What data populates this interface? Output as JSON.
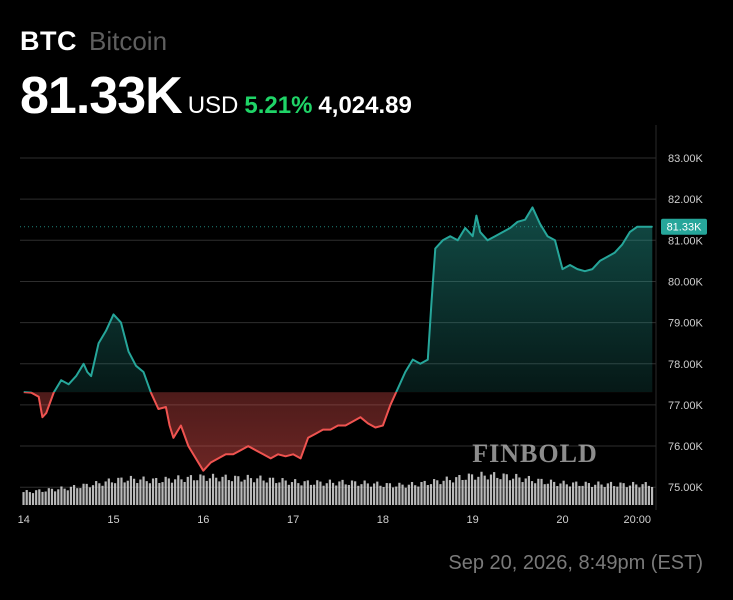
{
  "header": {
    "ticker": "BTC",
    "name": "Bitcoin",
    "price": "81.33K",
    "currency": "USD",
    "change_pct": "5.21%",
    "change_abs": "4,024.89"
  },
  "timestamp": "Sep 20, 2026, 8:49pm (EST)",
  "watermark": "FINBOLD",
  "colors": {
    "up": "#26a69a",
    "down": "#ef5350",
    "positive_text": "#1fd467",
    "grid": "#2e2e2e",
    "volume": "#d9d9d9"
  },
  "chart_data": {
    "type": "line",
    "title": "",
    "xlabel": "",
    "ylabel": "",
    "x_tick_labels": [
      {
        "x": 0,
        "label": "14"
      },
      {
        "x": 24,
        "label": "15"
      },
      {
        "x": 48,
        "label": "16"
      },
      {
        "x": 72,
        "label": "17"
      },
      {
        "x": 96,
        "label": "18"
      },
      {
        "x": 120,
        "label": "19"
      },
      {
        "x": 144,
        "label": "20"
      },
      {
        "x": 164,
        "label": "20:00"
      }
    ],
    "y_tick_labels": [
      "75.00K",
      "76.00K",
      "77.00K",
      "78.00K",
      "79.00K",
      "80.00K",
      "81.00K",
      "82.00K",
      "83.00K"
    ],
    "y_ticks": [
      75000,
      76000,
      77000,
      78000,
      79000,
      80000,
      81000,
      82000,
      83000
    ],
    "ylim": [
      74500,
      83500
    ],
    "xlim": [
      -1,
      169
    ],
    "baseline": 77310,
    "current_price": 81330,
    "current_label": "81.33K",
    "price_series": {
      "name": "",
      "x": [
        0,
        2,
        4,
        5,
        6,
        8,
        10,
        12,
        14,
        16,
        17,
        18,
        20,
        22,
        24,
        26,
        28,
        30,
        32,
        34,
        36,
        38,
        39,
        40,
        42,
        44,
        46,
        48,
        50,
        52,
        54,
        56,
        58,
        60,
        62,
        64,
        66,
        68,
        70,
        72,
        74,
        76,
        78,
        80,
        82,
        84,
        86,
        88,
        90,
        92,
        94,
        96,
        98,
        100,
        102,
        104,
        106,
        108,
        109,
        110,
        111,
        112,
        114,
        116,
        118,
        120,
        121,
        122,
        124,
        126,
        128,
        130,
        132,
        134,
        136,
        138,
        140,
        142,
        144,
        146,
        148,
        150,
        152,
        154,
        156,
        158,
        160,
        162,
        164,
        166,
        168
      ],
      "values": [
        77310,
        77300,
        77200,
        76700,
        76800,
        77300,
        77600,
        77500,
        77700,
        78000,
        77800,
        77700,
        78500,
        78800,
        79200,
        79000,
        78300,
        77950,
        77800,
        77300,
        76900,
        76950,
        76500,
        76200,
        76500,
        76000,
        75700,
        75400,
        75600,
        75700,
        75800,
        75800,
        75900,
        76000,
        75900,
        75800,
        75700,
        75800,
        75750,
        75800,
        75700,
        76200,
        76300,
        76400,
        76400,
        76500,
        76500,
        76600,
        76700,
        76550,
        76450,
        76500,
        77000,
        77400,
        77800,
        78100,
        78000,
        78100,
        79500,
        80800,
        80900,
        81000,
        81100,
        81000,
        81300,
        81100,
        81600,
        81200,
        81000,
        81100,
        81200,
        81300,
        81450,
        81500,
        81800,
        81400,
        81100,
        81000,
        80300,
        80400,
        80300,
        80250,
        80300,
        80500,
        80600,
        80700,
        80900,
        81200,
        81330,
        81330,
        81330
      ]
    },
    "volume_series": {
      "name": "",
      "x": [
        0,
        4,
        8,
        12,
        16,
        20,
        24,
        28,
        32,
        36,
        40,
        44,
        48,
        52,
        56,
        60,
        64,
        68,
        72,
        76,
        80,
        84,
        88,
        92,
        96,
        100,
        104,
        108,
        112,
        116,
        120,
        124,
        128,
        132,
        136,
        140,
        144,
        148,
        152,
        156,
        160,
        164,
        168
      ],
      "values": [
        35,
        38,
        42,
        46,
        52,
        58,
        66,
        70,
        68,
        66,
        70,
        72,
        75,
        74,
        72,
        72,
        70,
        66,
        62,
        60,
        60,
        61,
        60,
        58,
        55,
        53,
        55,
        60,
        66,
        72,
        78,
        80,
        78,
        74,
        68,
        62,
        58,
        57,
        56,
        56,
        55,
        55,
        55
      ]
    }
  }
}
